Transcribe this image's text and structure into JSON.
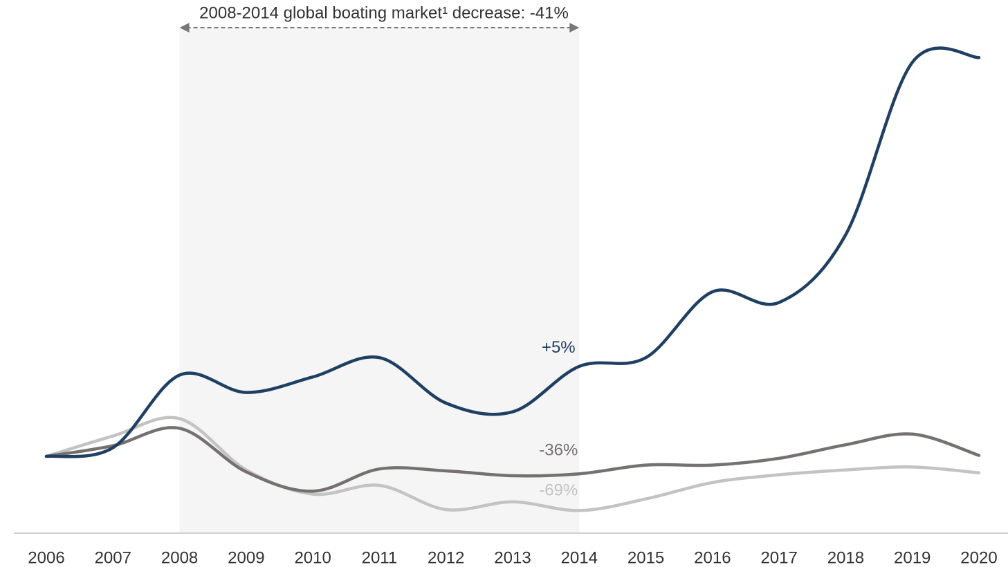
{
  "chart_data": {
    "type": "line",
    "annotation": "2008-2014 global boating market¹ decrease: -41%",
    "highlight": [
      "2008",
      "2014"
    ],
    "categories": [
      "2006",
      "2007",
      "2008",
      "2009",
      "2010",
      "2011",
      "2012",
      "2013",
      "2014",
      "2015",
      "2016",
      "2017",
      "2018",
      "2019",
      "2020"
    ],
    "series": [
      {
        "color": "#1f3f63",
        "label": "+5%",
        "values": [
          100,
          109,
          184,
          166,
          182,
          202,
          155,
          146,
          193,
          202,
          270,
          259,
          329,
          507,
          512
        ]
      },
      {
        "color": "#767171",
        "label": "-36%",
        "values": [
          100,
          111,
          129,
          84,
          64,
          87,
          85,
          80,
          82,
          91,
          91,
          98,
          112,
          123,
          101
        ]
      },
      {
        "color": "#c3c3c3",
        "label": "-69%",
        "values": [
          100,
          121,
          139,
          86,
          61,
          70,
          45,
          53,
          44,
          56,
          73,
          81,
          86,
          89,
          83
        ]
      }
    ],
    "ylim": [
      20,
      570
    ]
  }
}
